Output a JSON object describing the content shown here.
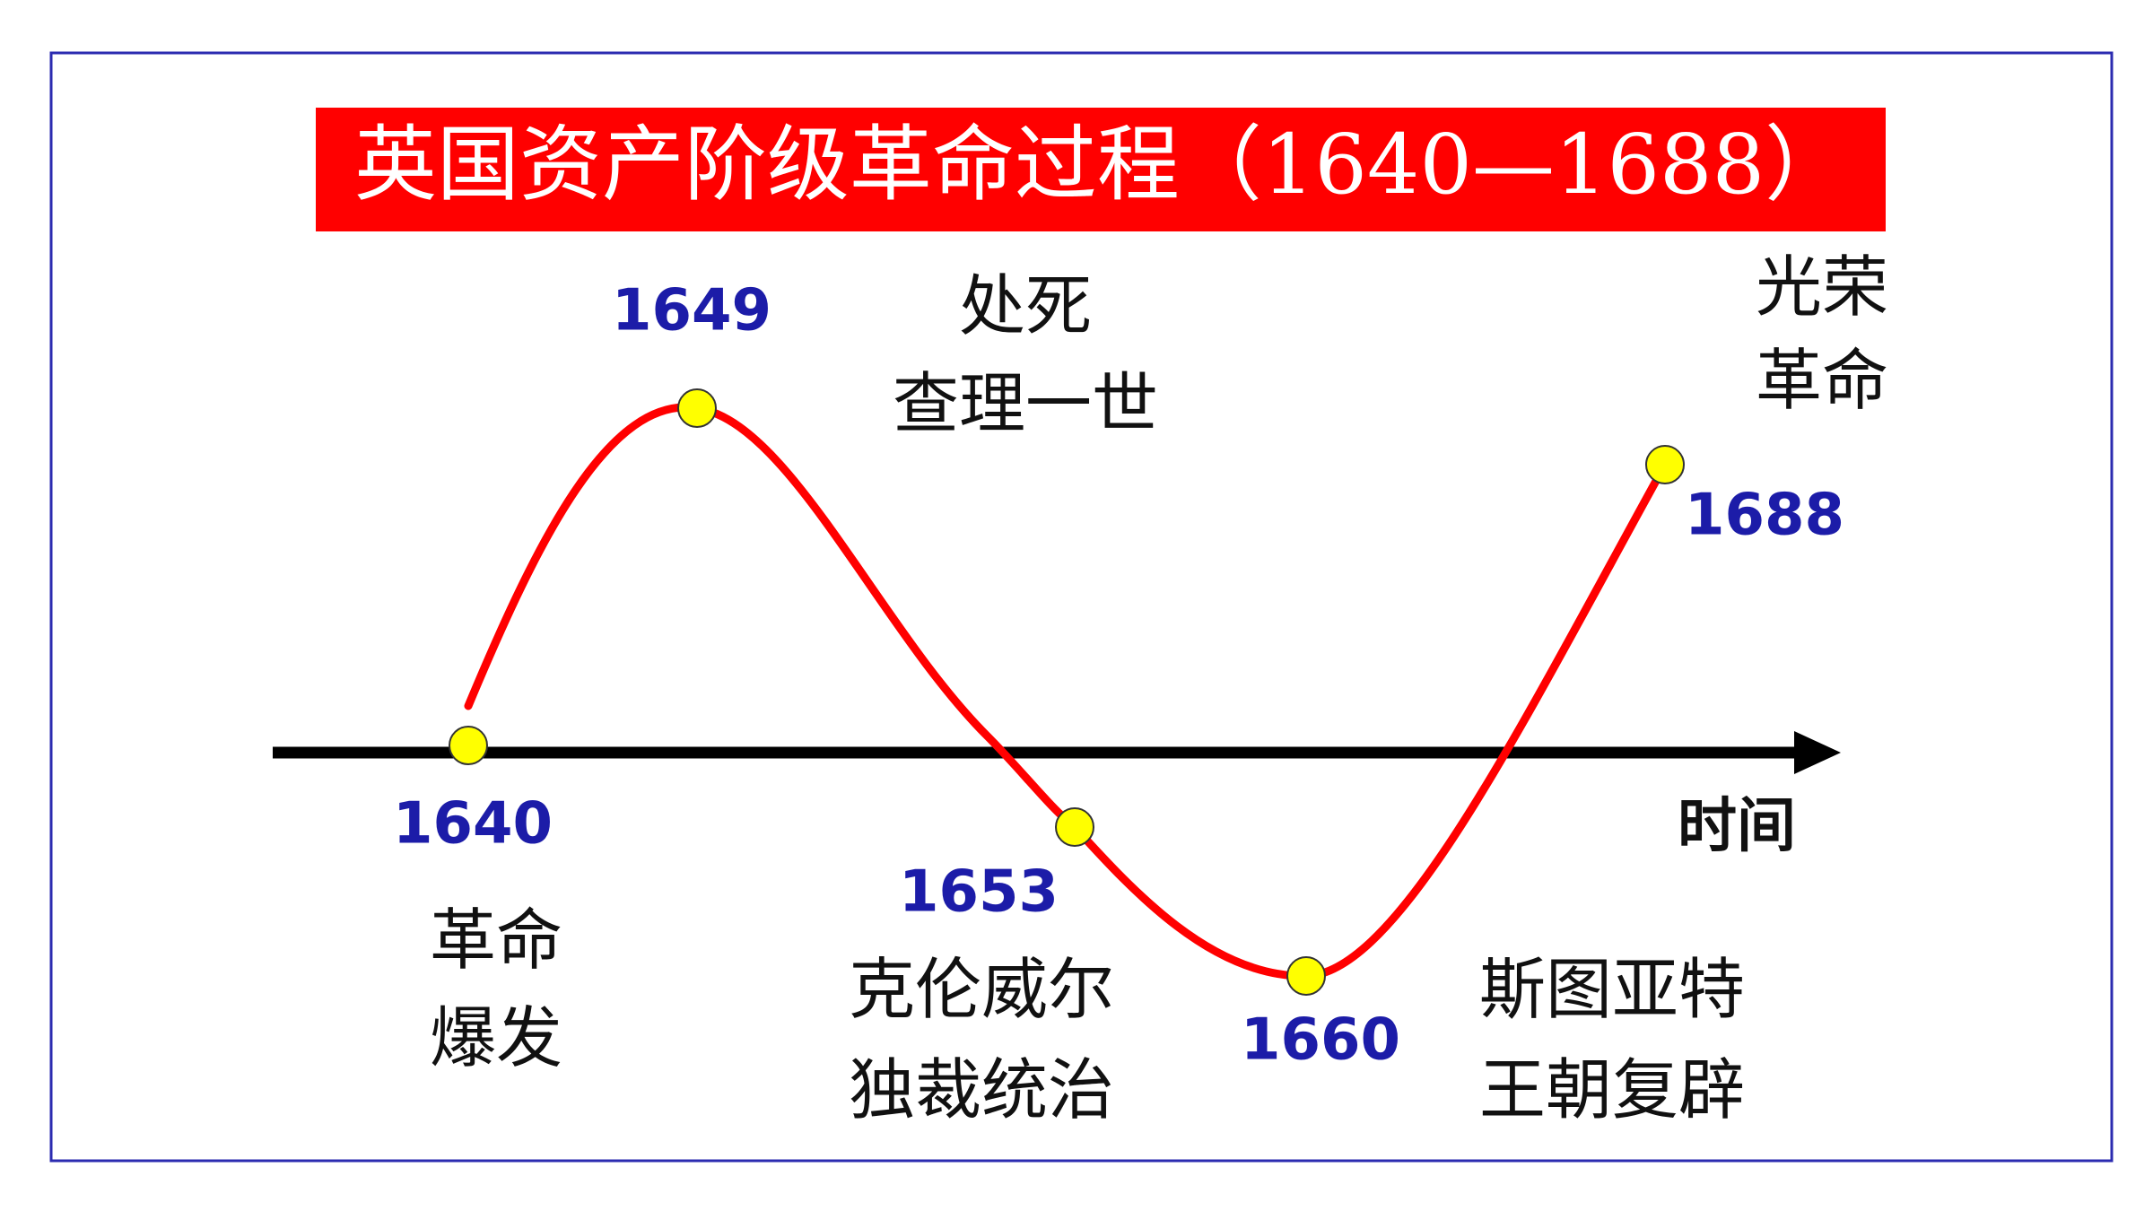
{
  "title": "英国资产阶级革命过程（1640—1688）",
  "axis_label": "时间",
  "events": [
    {
      "year": "1640",
      "lines": [
        "革命",
        "爆发"
      ]
    },
    {
      "year": "1649",
      "lines": [
        "处死",
        "查理一世"
      ]
    },
    {
      "year": "1653",
      "lines": [
        "克伦威尔",
        "独裁统治"
      ]
    },
    {
      "year": "1660",
      "lines": [
        "斯图亚特",
        "王朝复辟"
      ]
    },
    {
      "year": "1688",
      "lines": [
        "光荣",
        "革命"
      ]
    }
  ]
}
